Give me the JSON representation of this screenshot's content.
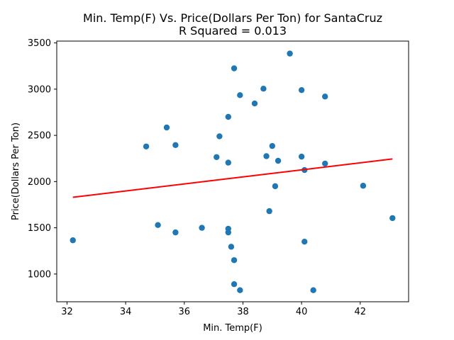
{
  "chart_data": {
    "type": "scatter",
    "title_line1": "Min. Temp(F) Vs. Price(Dollars Per Ton) for SantaCruz",
    "title_line2": "R Squared =  0.013",
    "xlabel": "Min. Temp(F)",
    "ylabel": "Price(Dollars Per Ton)",
    "xlim": [
      31.65,
      43.65
    ],
    "ylim": [
      700,
      3520
    ],
    "xticks": [
      32,
      34,
      36,
      38,
      40,
      42
    ],
    "yticks": [
      1000,
      1500,
      2000,
      2500,
      3000,
      3500
    ],
    "grid": false,
    "point_color": "#1f77b4",
    "line_color": "#ff0000",
    "points": [
      {
        "x": 32.2,
        "y": 1365
      },
      {
        "x": 34.7,
        "y": 2380
      },
      {
        "x": 35.1,
        "y": 1530
      },
      {
        "x": 35.4,
        "y": 2585
      },
      {
        "x": 35.7,
        "y": 2395
      },
      {
        "x": 35.7,
        "y": 1450
      },
      {
        "x": 36.6,
        "y": 1500
      },
      {
        "x": 37.1,
        "y": 2265
      },
      {
        "x": 37.2,
        "y": 2490
      },
      {
        "x": 37.5,
        "y": 2700
      },
      {
        "x": 37.5,
        "y": 2205
      },
      {
        "x": 37.5,
        "y": 1490
      },
      {
        "x": 37.5,
        "y": 1450
      },
      {
        "x": 37.6,
        "y": 1295
      },
      {
        "x": 37.7,
        "y": 3225
      },
      {
        "x": 37.7,
        "y": 1150
      },
      {
        "x": 37.7,
        "y": 890
      },
      {
        "x": 37.9,
        "y": 2935
      },
      {
        "x": 37.9,
        "y": 825
      },
      {
        "x": 38.4,
        "y": 2845
      },
      {
        "x": 38.7,
        "y": 3005
      },
      {
        "x": 38.8,
        "y": 2275
      },
      {
        "x": 38.9,
        "y": 1680
      },
      {
        "x": 39.0,
        "y": 2385
      },
      {
        "x": 39.1,
        "y": 1950
      },
      {
        "x": 39.2,
        "y": 2225
      },
      {
        "x": 39.6,
        "y": 3385
      },
      {
        "x": 40.0,
        "y": 2990
      },
      {
        "x": 40.0,
        "y": 2270
      },
      {
        "x": 40.1,
        "y": 2125
      },
      {
        "x": 40.1,
        "y": 1350
      },
      {
        "x": 40.4,
        "y": 825
      },
      {
        "x": 40.8,
        "y": 2920
      },
      {
        "x": 40.8,
        "y": 2195
      },
      {
        "x": 42.1,
        "y": 1955
      },
      {
        "x": 43.1,
        "y": 1605
      }
    ],
    "regression": {
      "x": [
        32.2,
        43.1
      ],
      "y": [
        1830,
        2245
      ]
    }
  }
}
